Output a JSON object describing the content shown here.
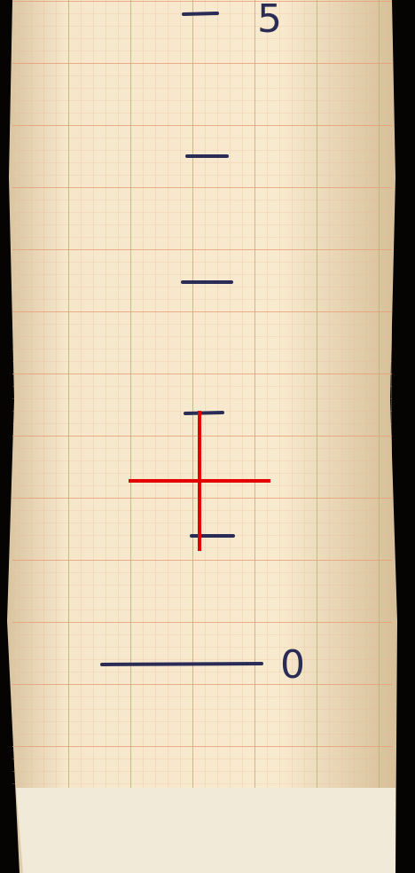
{
  "scale": {
    "top_label": "5",
    "bottom_label": "0"
  }
}
